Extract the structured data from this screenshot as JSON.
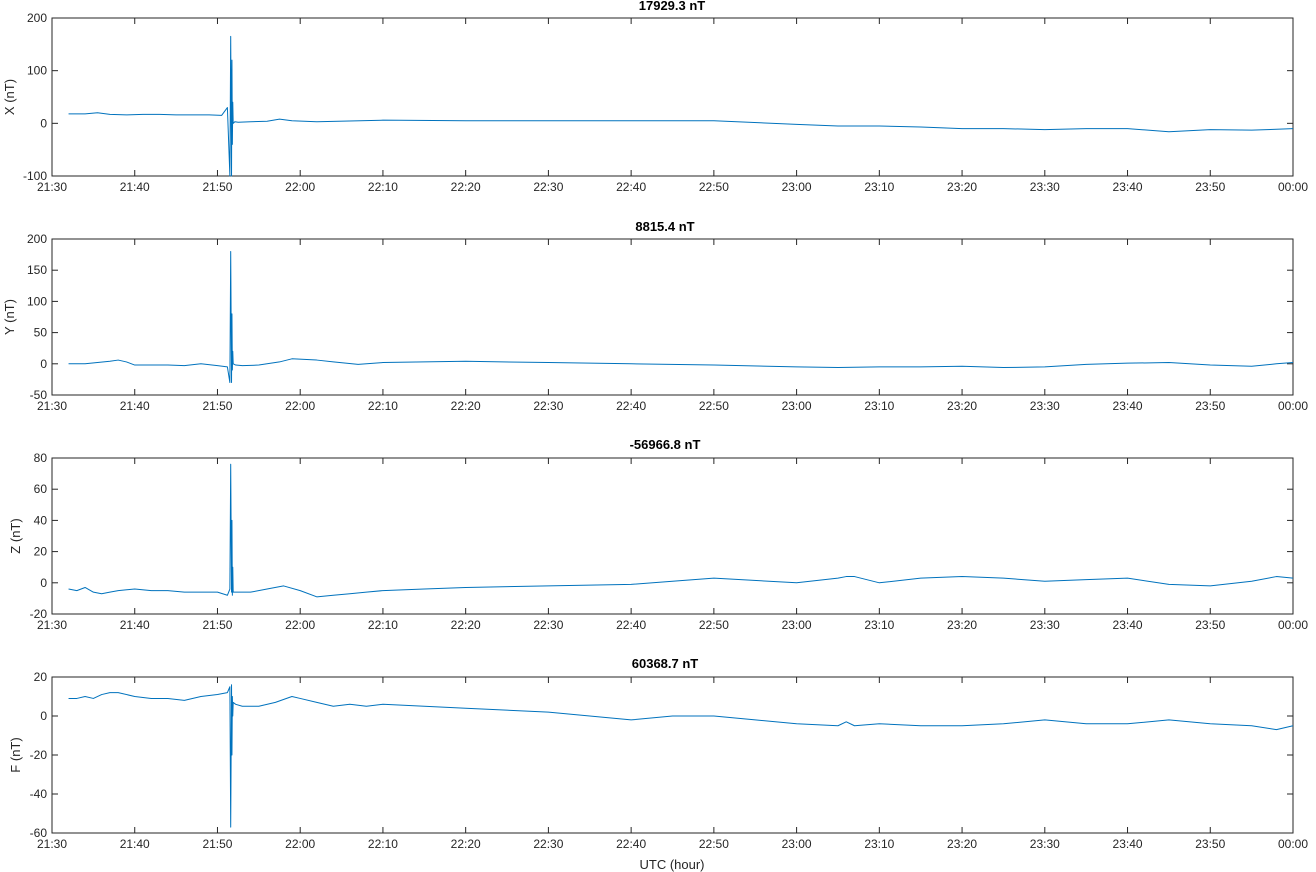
{
  "chart_data": [
    {
      "type": "line",
      "title": "17929.3 nT",
      "ylabel": "X (nT)",
      "xlabel": "",
      "ylim": [
        -100,
        200
      ],
      "yticks": [
        -100,
        0,
        100,
        200
      ],
      "xlim": [
        0,
        150
      ],
      "xtick_values": [
        0,
        10,
        20,
        30,
        40,
        50,
        60,
        70,
        80,
        90,
        100,
        110,
        120,
        130,
        140,
        150
      ],
      "xtick_labels": [
        "21:30",
        "21:40",
        "21:50",
        "22:00",
        "22:10",
        "22:20",
        "22:30",
        "22:40",
        "22:50",
        "23:00",
        "23:10",
        "23:20",
        "23:30",
        "23:40",
        "23:50",
        "00:00"
      ],
      "color": "#0072BD",
      "series": [
        {
          "x": [
            2,
            4,
            5.5,
            7,
            9,
            11,
            13,
            15,
            17,
            19,
            20.5,
            21.2,
            21.5,
            21.6,
            21.7,
            21.75,
            21.8,
            21.85,
            21.9,
            22.1,
            22.5,
            24,
            26,
            27.5,
            29,
            32,
            40,
            50,
            60,
            70,
            80,
            90,
            95,
            100,
            105,
            110,
            115,
            120,
            125,
            130,
            135,
            140,
            145,
            150
          ],
          "y": [
            18,
            18,
            20,
            17,
            16,
            17,
            17,
            16,
            16,
            16,
            15,
            30,
            -100,
            165,
            -100,
            120,
            -40,
            40,
            0,
            3,
            2,
            3,
            4,
            8,
            5,
            3,
            6,
            5,
            5,
            5,
            5,
            -2,
            -5,
            -5,
            -7,
            -10,
            -10,
            -12,
            -10,
            -10,
            -16,
            -12,
            -13,
            -10
          ]
        }
      ]
    },
    {
      "type": "line",
      "title": "8815.4 nT",
      "ylabel": "Y (nT)",
      "xlabel": "",
      "ylim": [
        -50,
        200
      ],
      "yticks": [
        -50,
        0,
        50,
        100,
        150,
        200
      ],
      "xlim": [
        0,
        150
      ],
      "xtick_values": [
        0,
        10,
        20,
        30,
        40,
        50,
        60,
        70,
        80,
        90,
        100,
        110,
        120,
        130,
        140,
        150
      ],
      "xtick_labels": [
        "21:30",
        "21:40",
        "21:50",
        "22:00",
        "22:10",
        "22:20",
        "22:30",
        "22:40",
        "22:50",
        "23:00",
        "23:10",
        "23:20",
        "23:30",
        "23:40",
        "23:50",
        "00:00"
      ],
      "color": "#0072BD",
      "series": [
        {
          "x": [
            2,
            4,
            5.5,
            7,
            8,
            9,
            10,
            12,
            14,
            16,
            18,
            20,
            21.2,
            21.5,
            21.6,
            21.7,
            21.75,
            21.8,
            21.85,
            21.9,
            22.2,
            23,
            25,
            27.5,
            29,
            32,
            34,
            37,
            40,
            50,
            60,
            70,
            80,
            90,
            95,
            100,
            105,
            110,
            115,
            120,
            125,
            130,
            135,
            140,
            145,
            148,
            150
          ],
          "y": [
            0,
            0,
            2,
            4,
            6,
            3,
            -2,
            -2,
            -2,
            -3,
            0,
            -3,
            -5,
            -30,
            180,
            -30,
            80,
            -10,
            20,
            0,
            -2,
            -3,
            -2,
            3,
            8,
            6,
            3,
            -1,
            2,
            4,
            2,
            0,
            -2,
            -5,
            -6,
            -5,
            -5,
            -4,
            -6,
            -5,
            -1,
            1,
            2,
            -2,
            -4,
            0,
            2
          ]
        }
      ]
    },
    {
      "type": "line",
      "title": "-56966.8 nT",
      "ylabel": "Z (nT)",
      "xlabel": "UTC (hour)",
      "ylim": [
        -20,
        80
      ],
      "yticks": [
        -20,
        0,
        20,
        40,
        60,
        80
      ],
      "xlim": [
        0,
        150
      ],
      "xtick_values": [
        0,
        10,
        20,
        30,
        40,
        50,
        60,
        70,
        80,
        90,
        100,
        110,
        120,
        130,
        140,
        150
      ],
      "xtick_labels": [
        "21:30",
        "21:40",
        "21:50",
        "22:00",
        "22:10",
        "22:20",
        "22:30",
        "22:40",
        "22:50",
        "23:00",
        "23:10",
        "23:20",
        "23:30",
        "23:40",
        "23:50",
        "00:00"
      ],
      "color": "#0072BD",
      "series": [
        {
          "x": [
            2,
            3,
            4,
            5,
            6,
            7,
            8,
            10,
            12,
            14,
            16,
            18,
            20,
            21.2,
            21.5,
            21.6,
            21.7,
            21.75,
            21.8,
            21.85,
            21.9,
            22.2,
            24,
            26,
            28,
            30,
            32,
            34,
            36,
            38,
            40,
            45,
            50,
            60,
            70,
            75,
            80,
            90,
            95,
            96,
            97,
            100,
            105,
            110,
            115,
            120,
            125,
            130,
            135,
            140,
            145,
            148,
            150
          ],
          "y": [
            -4,
            -5,
            -3,
            -6,
            -7,
            -6,
            -5,
            -4,
            -5,
            -5,
            -6,
            -6,
            -6,
            -8,
            -4,
            76,
            -6,
            40,
            -8,
            10,
            -6,
            -6,
            -6,
            -4,
            -2,
            -5,
            -9,
            -8,
            -7,
            -6,
            -5,
            -4,
            -3,
            -2,
            -1,
            1,
            3,
            0,
            3,
            4,
            4,
            0,
            3,
            4,
            3,
            1,
            2,
            3,
            -1,
            -2,
            1,
            4,
            3
          ]
        }
      ]
    },
    {
      "type": "line",
      "title": "60368.7 nT",
      "ylabel": "F (nT)",
      "xlabel": "UTC (hour)",
      "ylim": [
        -60,
        20
      ],
      "yticks": [
        -60,
        -40,
        -20,
        0,
        20
      ],
      "xlim": [
        0,
        150
      ],
      "xtick_values": [
        0,
        10,
        20,
        30,
        40,
        50,
        60,
        70,
        80,
        90,
        100,
        110,
        120,
        130,
        140,
        150
      ],
      "xtick_labels": [
        "21:30",
        "21:40",
        "21:50",
        "22:00",
        "22:10",
        "22:20",
        "22:30",
        "22:40",
        "22:50",
        "23:00",
        "23:10",
        "23:20",
        "23:30",
        "23:40",
        "23:50",
        "00:00"
      ],
      "color": "#0072BD",
      "series": [
        {
          "x": [
            2,
            3,
            4,
            5,
            6,
            7,
            8,
            10,
            12,
            14,
            16,
            18,
            20,
            21.2,
            21.5,
            21.6,
            21.7,
            21.75,
            21.8,
            21.85,
            21.9,
            22.2,
            23,
            25,
            27,
            29,
            30,
            32,
            34,
            36,
            38,
            40,
            45,
            50,
            60,
            70,
            75,
            80,
            85,
            90,
            95,
            96,
            97,
            100,
            105,
            110,
            115,
            120,
            125,
            130,
            135,
            140,
            145,
            148,
            150
          ],
          "y": [
            9,
            9,
            10,
            9,
            11,
            12,
            12,
            10,
            9,
            9,
            8,
            10,
            11,
            12,
            15,
            -57,
            16,
            -20,
            10,
            0,
            7,
            6,
            5,
            5,
            7,
            10,
            9,
            7,
            5,
            6,
            5,
            6,
            5,
            4,
            2,
            -2,
            0,
            0,
            -2,
            -4,
            -5,
            -3,
            -5,
            -4,
            -5,
            -5,
            -4,
            -2,
            -4,
            -4,
            -2,
            -4,
            -5,
            -7,
            -5
          ]
        }
      ]
    }
  ]
}
